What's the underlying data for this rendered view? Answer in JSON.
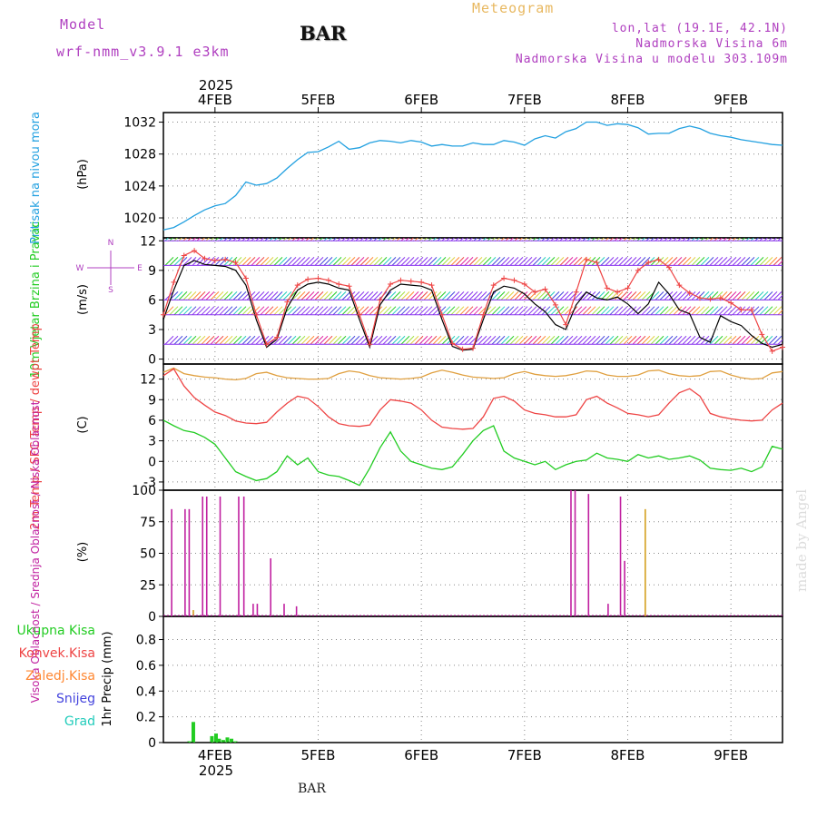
{
  "header": {
    "model_label": "Model",
    "model_name": "wrf-nmm_v3.9.1 e3km",
    "station": "BAR",
    "chart_kind": "Meteogram",
    "lonlat": "lon,lat (19.1E, 42.1N)",
    "elevation": "Nadmorska Visina 6m",
    "model_elevation": "Nadmorska Visina u modelu 303.109m"
  },
  "footer": {
    "station": "BAR",
    "credit": "made by Angel"
  },
  "colors": {
    "pressure": "#22a0e0",
    "wind_obs": "#ee4444",
    "wind_model": "#000000",
    "temp2m": "#ee4444",
    "sfc": "#e0a040",
    "dew": "#22cc22",
    "high_cloud": "#22a0e0",
    "mid_cloud": "#d4a020",
    "low_cloud": "#c020a0",
    "precip_total": "#22cc22",
    "precip_conv": "#ee4444",
    "precip_frz": "#ff8833",
    "precip_snow": "#4444dd",
    "precip_grad": "#22ccbb"
  },
  "chart_data": [
    {
      "type": "line",
      "title": "Pritisak na nivou mora",
      "ylabel": "(hPa)",
      "ylim": [
        1017.5,
        1033.2
      ],
      "yticks": [
        1020,
        1024,
        1028,
        1032
      ],
      "x_unit": "days since 2025-02-04 00 UTC",
      "xlim": [
        -0.5,
        5.5
      ],
      "top_axis": {
        "year": "2025",
        "ticks": [
          "4FEB",
          "5FEB",
          "6FEB",
          "7FEB",
          "8FEB",
          "9FEB"
        ]
      },
      "series": [
        {
          "name": "Pritisak na nivou mora",
          "x": [
            -0.5,
            -0.4,
            -0.3,
            -0.2,
            -0.1,
            0,
            0.1,
            0.2,
            0.3,
            0.4,
            0.5,
            0.6,
            0.7,
            0.8,
            0.9,
            1,
            1.1,
            1.2,
            1.3,
            1.4,
            1.5,
            1.6,
            1.7,
            1.8,
            1.9,
            2,
            2.1,
            2.2,
            2.3,
            2.4,
            2.5,
            2.6,
            2.7,
            2.8,
            2.9,
            3,
            3.1,
            3.2,
            3.3,
            3.4,
            3.5,
            3.6,
            3.7,
            3.8,
            3.9,
            4,
            4.1,
            4.2,
            4.3,
            4.4,
            4.5,
            4.6,
            4.7,
            4.8,
            4.9,
            5,
            5.1,
            5.2,
            5.3,
            5.4,
            5.5
          ],
          "values": [
            1018.5,
            1018.8,
            1019.5,
            1020.3,
            1021.0,
            1021.5,
            1021.8,
            1022.8,
            1024.5,
            1024.1,
            1024.3,
            1025.0,
            1026.2,
            1027.3,
            1028.2,
            1028.3,
            1028.9,
            1029.6,
            1028.6,
            1028.8,
            1029.4,
            1029.7,
            1029.6,
            1029.4,
            1029.7,
            1029.5,
            1029.0,
            1029.2,
            1029.0,
            1029.0,
            1029.4,
            1029.2,
            1029.2,
            1029.7,
            1029.5,
            1029.1,
            1029.9,
            1030.3,
            1030.0,
            1030.8,
            1031.2,
            1032.0,
            1032.0,
            1031.6,
            1031.8,
            1031.7,
            1031.3,
            1030.5,
            1030.6,
            1030.6,
            1031.2,
            1031.5,
            1031.2,
            1030.6,
            1030.3,
            1030.1,
            1029.8,
            1029.6,
            1029.4,
            1029.2,
            1029.1
          ]
        }
      ]
    },
    {
      "type": "line",
      "title": "10m Vjetar Brzina i Pravac",
      "ylabel": "(m/s)",
      "ylim": [
        -0.5,
        12.3
      ],
      "yticks": [
        0,
        3,
        6,
        9,
        12
      ],
      "compass_labels": [
        "N",
        "W",
        "E",
        "S"
      ],
      "barb_levels_ms": [
        1.5,
        4.5,
        6,
        9.5,
        12
      ],
      "series": [
        {
          "name": "Brzina (obs, +)",
          "x": [
            -0.5,
            -0.4,
            -0.3,
            -0.2,
            -0.1,
            0,
            0.1,
            0.2,
            0.3,
            0.4,
            0.5,
            0.6,
            0.7,
            0.8,
            0.9,
            1,
            1.1,
            1.2,
            1.3,
            1.4,
            1.5,
            1.6,
            1.7,
            1.8,
            1.9,
            2,
            2.1,
            2.2,
            2.3,
            2.4,
            2.5,
            2.6,
            2.7,
            2.8,
            2.9,
            3,
            3.1,
            3.2,
            3.3,
            3.4,
            3.5,
            3.6,
            3.7,
            3.8,
            3.9,
            4,
            4.1,
            4.2,
            4.3,
            4.4,
            4.5,
            4.6,
            4.7,
            4.8,
            4.9,
            5,
            5.1,
            5.2,
            5.3,
            5.4,
            5.5
          ],
          "values": [
            4.5,
            7.8,
            10.5,
            11.0,
            10.2,
            10.0,
            10.1,
            9.8,
            8.2,
            4.5,
            1.5,
            2.2,
            5.8,
            7.5,
            8.1,
            8.2,
            8.0,
            7.6,
            7.4,
            4.5,
            1.5,
            6.0,
            7.6,
            8.0,
            7.9,
            7.8,
            7.5,
            4.5,
            1.6,
            1.0,
            1.1,
            4.5,
            7.5,
            8.2,
            8.0,
            7.6,
            6.8,
            7.1,
            5.5,
            3.5,
            6.8,
            10.1,
            9.8,
            7.2,
            6.8,
            7.2,
            9.0,
            9.8,
            10.1,
            9.3,
            7.5,
            6.7,
            6.2,
            6.1,
            6.2,
            5.7,
            5.0,
            5.0,
            2.5,
            0.8,
            1.2
          ]
        },
        {
          "name": "Brzina (model)",
          "x": [
            -0.5,
            -0.4,
            -0.3,
            -0.2,
            -0.1,
            0,
            0.1,
            0.2,
            0.3,
            0.4,
            0.5,
            0.6,
            0.7,
            0.8,
            0.9,
            1,
            1.1,
            1.2,
            1.3,
            1.4,
            1.5,
            1.6,
            1.7,
            1.8,
            1.9,
            2,
            2.1,
            2.2,
            2.3,
            2.4,
            2.5,
            2.6,
            2.7,
            2.8,
            2.9,
            3,
            3.1,
            3.2,
            3.3,
            3.4,
            3.5,
            3.6,
            3.7,
            3.8,
            3.9,
            4,
            4.1,
            4.2,
            4.3,
            4.4,
            4.5,
            4.6,
            4.7,
            4.8,
            4.9,
            5,
            5.1,
            5.2,
            5.3,
            5.4,
            5.5
          ],
          "values": [
            4.0,
            7.0,
            9.5,
            10.0,
            9.6,
            9.5,
            9.4,
            9.0,
            7.5,
            4.0,
            1.2,
            2.0,
            5.2,
            7.0,
            7.6,
            7.8,
            7.6,
            7.2,
            7.0,
            4.0,
            1.2,
            5.5,
            7.0,
            7.6,
            7.5,
            7.4,
            7.0,
            4.0,
            1.3,
            0.9,
            1.0,
            4.0,
            6.8,
            7.4,
            7.2,
            6.6,
            5.6,
            4.8,
            3.5,
            3.0,
            5.5,
            6.8,
            6.2,
            6.0,
            6.3,
            5.6,
            4.6,
            5.6,
            7.8,
            6.6,
            5.0,
            4.6,
            2.2,
            1.7,
            4.4,
            3.8,
            3.4,
            2.4,
            1.6,
            1.2,
            1.5
          ]
        }
      ]
    },
    {
      "type": "line",
      "title": "2m Temp / SFC Temp / dewpt Temp",
      "ylabel": "(C)",
      "ylim": [
        -4.2,
        14.2
      ],
      "yticks": [
        -3,
        0,
        3,
        6,
        9,
        12
      ],
      "series": [
        {
          "name": "2m Temp",
          "x": [
            -0.5,
            -0.4,
            -0.3,
            -0.2,
            -0.1,
            0,
            0.1,
            0.2,
            0.3,
            0.4,
            0.5,
            0.6,
            0.7,
            0.8,
            0.9,
            1,
            1.1,
            1.2,
            1.3,
            1.4,
            1.5,
            1.6,
            1.7,
            1.8,
            1.9,
            2,
            2.1,
            2.2,
            2.3,
            2.4,
            2.5,
            2.6,
            2.7,
            2.8,
            2.9,
            3,
            3.1,
            3.2,
            3.3,
            3.4,
            3.5,
            3.6,
            3.7,
            3.8,
            3.9,
            4,
            4.1,
            4.2,
            4.3,
            4.4,
            4.5,
            4.6,
            4.7,
            4.8,
            4.9,
            5,
            5.1,
            5.2,
            5.3,
            5.4,
            5.5
          ],
          "values": [
            12.5,
            13.5,
            11.0,
            9.3,
            8.2,
            7.2,
            6.7,
            5.9,
            5.6,
            5.5,
            5.7,
            7.2,
            8.5,
            9.5,
            9.2,
            8.0,
            6.5,
            5.5,
            5.2,
            5.1,
            5.3,
            7.5,
            9.0,
            8.8,
            8.5,
            7.5,
            6.0,
            5.0,
            4.8,
            4.7,
            4.8,
            6.5,
            9.2,
            9.5,
            8.8,
            7.5,
            7.0,
            6.8,
            6.5,
            6.5,
            6.8,
            9.0,
            9.5,
            8.5,
            7.8,
            7.0,
            6.8,
            6.5,
            6.8,
            8.5,
            10.0,
            10.6,
            9.5,
            7.0,
            6.5,
            6.2,
            6.0,
            5.9,
            6.0,
            7.5,
            8.5
          ]
        },
        {
          "name": "SFC Temp",
          "x": [
            -0.5,
            -0.4,
            -0.3,
            -0.2,
            -0.1,
            0,
            0.1,
            0.2,
            0.3,
            0.4,
            0.5,
            0.6,
            0.7,
            0.8,
            0.9,
            1,
            1.1,
            1.2,
            1.3,
            1.4,
            1.5,
            1.6,
            1.7,
            1.8,
            1.9,
            2,
            2.1,
            2.2,
            2.3,
            2.4,
            2.5,
            2.6,
            2.7,
            2.8,
            2.9,
            3,
            3.1,
            3.2,
            3.3,
            3.4,
            3.5,
            3.6,
            3.7,
            3.8,
            3.9,
            4,
            4.1,
            4.2,
            4.3,
            4.4,
            4.5,
            4.6,
            4.7,
            4.8,
            4.9,
            5,
            5.1,
            5.2,
            5.3,
            5.4,
            5.5
          ],
          "values": [
            13.0,
            13.6,
            12.8,
            12.5,
            12.3,
            12.2,
            12.0,
            11.9,
            12.1,
            12.8,
            13.0,
            12.5,
            12.2,
            12.1,
            12.0,
            12.0,
            12.1,
            12.8,
            13.2,
            13.0,
            12.5,
            12.2,
            12.1,
            12.0,
            12.1,
            12.3,
            12.9,
            13.3,
            13.0,
            12.6,
            12.3,
            12.2,
            12.1,
            12.2,
            12.8,
            13.1,
            12.7,
            12.5,
            12.4,
            12.5,
            12.8,
            13.2,
            13.1,
            12.6,
            12.4,
            12.4,
            12.6,
            13.2,
            13.3,
            12.8,
            12.5,
            12.4,
            12.5,
            13.1,
            13.2,
            12.6,
            12.2,
            12.0,
            12.1,
            12.9,
            13.1
          ]
        },
        {
          "name": "dewpt Temp",
          "x": [
            -0.5,
            -0.4,
            -0.3,
            -0.2,
            -0.1,
            0,
            0.1,
            0.2,
            0.3,
            0.4,
            0.5,
            0.6,
            0.7,
            0.8,
            0.9,
            1,
            1.1,
            1.2,
            1.3,
            1.4,
            1.5,
            1.6,
            1.7,
            1.8,
            1.9,
            2,
            2.1,
            2.2,
            2.3,
            2.4,
            2.5,
            2.6,
            2.7,
            2.8,
            2.9,
            3,
            3.1,
            3.2,
            3.3,
            3.4,
            3.5,
            3.6,
            3.7,
            3.8,
            3.9,
            4,
            4.1,
            4.2,
            4.3,
            4.4,
            4.5,
            4.6,
            4.7,
            4.8,
            4.9,
            5,
            5.1,
            5.2,
            5.3,
            5.4,
            5.5
          ],
          "values": [
            6.0,
            5.2,
            4.5,
            4.2,
            3.5,
            2.5,
            0.5,
            -1.5,
            -2.2,
            -2.8,
            -2.5,
            -1.5,
            0.8,
            -0.5,
            0.5,
            -1.5,
            -2.0,
            -2.2,
            -2.8,
            -3.5,
            -1.0,
            2.0,
            4.3,
            1.5,
            0.0,
            -0.5,
            -1.0,
            -1.2,
            -0.8,
            1.0,
            3.0,
            4.5,
            5.2,
            1.5,
            0.5,
            0.0,
            -0.5,
            0.0,
            -1.2,
            -0.5,
            0.0,
            0.2,
            1.2,
            0.5,
            0.3,
            0.0,
            1.0,
            0.5,
            0.8,
            0.3,
            0.5,
            0.8,
            0.2,
            -1.0,
            -1.2,
            -1.3,
            -1.0,
            -1.5,
            -0.8,
            2.2,
            1.8
          ]
        }
      ]
    },
    {
      "type": "bar",
      "title": "Visoka Oblacnost / Srednja Oblacnost / Niska Oblacnost",
      "ylabel": "(%)",
      "ylim": [
        0,
        100
      ],
      "yticks": [
        0,
        25,
        50,
        75,
        100
      ],
      "series": [
        {
          "name": "Visoka Oblacnost",
          "x": [],
          "values": []
        },
        {
          "name": "Srednja Oblacnost",
          "x": [
            -0.21,
            4.17
          ],
          "values": [
            5,
            85
          ]
        },
        {
          "name": "Niska Oblacnost",
          "x": [
            -0.42,
            -0.29,
            -0.25,
            -0.12,
            -0.08,
            0.05,
            0.23,
            0.28,
            0.37,
            0.41,
            0.54,
            0.67,
            0.79,
            3.45,
            3.49,
            3.62,
            3.81,
            3.93,
            3.97
          ],
          "values": [
            85,
            85,
            85,
            95,
            95,
            95,
            95,
            95,
            10,
            10,
            46,
            10,
            8,
            100,
            100,
            97,
            10,
            95,
            44
          ]
        }
      ]
    },
    {
      "type": "bar",
      "title": "1hr Precip",
      "ylabel": "1hr Precip (mm)",
      "ylim": [
        0,
        0.98
      ],
      "yticks": [
        0,
        0.2,
        0.4,
        0.6,
        0.8
      ],
      "legend": [
        "Ukupna Kisa",
        "Konvek.Kisa",
        "Zaledj.Kisa",
        "Snijeg",
        "Grad"
      ],
      "bottom_axis": {
        "year": "2025",
        "ticks": [
          "4FEB",
          "5FEB",
          "6FEB",
          "7FEB",
          "8FEB",
          "9FEB"
        ]
      },
      "series": [
        {
          "name": "Ukupna Kisa",
          "x": [
            -0.25,
            -0.21,
            -0.03,
            0.01,
            0.04,
            0.08,
            0.12,
            0.16,
            0.2
          ],
          "values": [
            0.01,
            0.16,
            0.05,
            0.07,
            0.03,
            0.02,
            0.04,
            0.03,
            0.01
          ]
        }
      ]
    }
  ]
}
